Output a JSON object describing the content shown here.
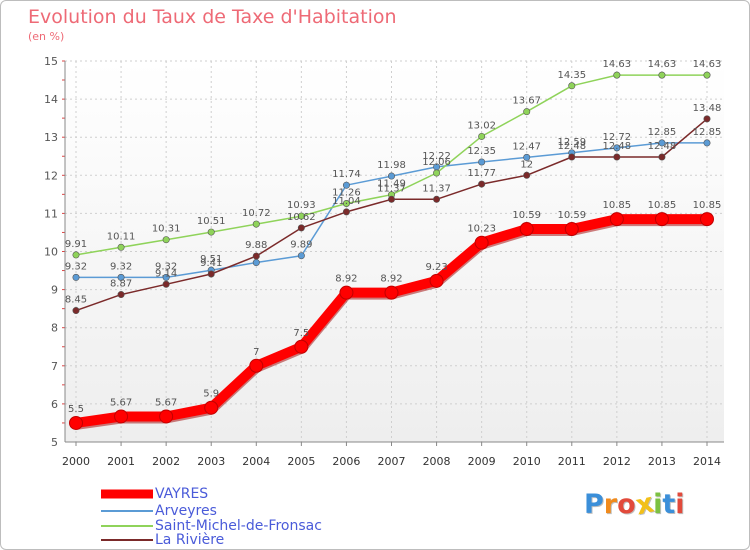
{
  "chart_data": {
    "type": "line",
    "title": "Evolution du Taux de Taxe d'Habitation",
    "subtitle": "(en %)",
    "x": [
      2000,
      2001,
      2002,
      2003,
      2004,
      2005,
      2006,
      2007,
      2008,
      2009,
      2010,
      2011,
      2012,
      2013,
      2014
    ],
    "ylim": [
      5,
      15
    ],
    "yticks": [
      5,
      6,
      7,
      8,
      9,
      10,
      11,
      12,
      13,
      14,
      15
    ],
    "grid": true,
    "legend_position": "bottom-left",
    "series": [
      {
        "name": "VAYRES",
        "color": "#ff0000",
        "values": [
          5.5,
          5.67,
          5.67,
          5.9,
          7,
          7.5,
          8.92,
          8.92,
          9.23,
          10.23,
          10.59,
          10.59,
          10.85,
          10.85,
          10.85
        ],
        "labels": [
          "5.5",
          "5.67",
          "5.67",
          "5.9",
          "7",
          "7.5",
          "8.92",
          "8.92",
          "9.23",
          "10.23",
          "10.59",
          "10.59",
          "10.85",
          "10.85",
          "10.85"
        ]
      },
      {
        "name": "Arveyres",
        "color": "#5b9bd5",
        "values": [
          9.32,
          9.32,
          9.32,
          9.51,
          9.71,
          9.89,
          11.74,
          11.98,
          12.22,
          12.35,
          12.47,
          12.59,
          12.72,
          12.85,
          12.85
        ],
        "labels": [
          "9.32",
          "9.32",
          "9.32",
          "9.51",
          "",
          "9.89",
          "11.74",
          "11.98",
          "12.22",
          "12.35",
          "12.47",
          "12.59",
          "12.72",
          "12.85",
          "12.85"
        ]
      },
      {
        "name": "Saint-Michel-de-Fronsac",
        "color": "#8fd35a",
        "values": [
          9.91,
          10.11,
          10.31,
          10.51,
          10.72,
          10.93,
          11.26,
          11.49,
          12.06,
          13.02,
          13.67,
          14.35,
          14.63,
          14.63,
          14.63
        ],
        "labels": [
          "9.91",
          "10.11",
          "10.31",
          "10.51",
          "10.72",
          "10.93",
          "11.26",
          "11.49",
          "12.06",
          "13.02",
          "13.67",
          "14.35",
          "14.63",
          "14.63",
          "14.63"
        ]
      },
      {
        "name": "La Rivière",
        "color": "#7b2a2a",
        "values": [
          8.45,
          8.87,
          9.14,
          9.41,
          9.88,
          10.62,
          11.04,
          11.37,
          11.37,
          11.77,
          12,
          12.48,
          12.48,
          12.48,
          13.48
        ],
        "labels": [
          "8.45",
          "8.87",
          "9.14",
          "9.41",
          "9.88",
          "10.62",
          "11.04",
          "11.37",
          "11.37",
          "11.77",
          "12",
          "12.48",
          "12.48",
          "12.48",
          "13.48"
        ]
      }
    ]
  },
  "logo": {
    "letters": [
      "P",
      "r",
      "o",
      "x",
      "i",
      "t",
      "i"
    ],
    "colors": [
      "#3b8fd9",
      "#f08a1c",
      "#e24a3b",
      "#f2c019",
      "#7cc142",
      "#3b8fd9",
      "#e24a3b"
    ]
  }
}
